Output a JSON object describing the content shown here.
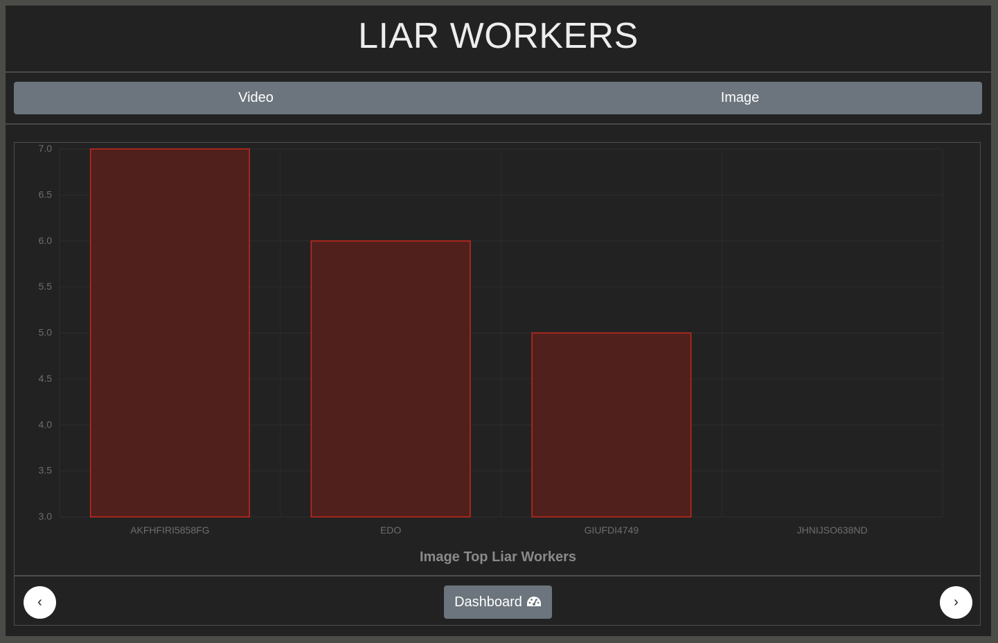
{
  "header": {
    "title": "LIAR WORKERS"
  },
  "tabs": [
    {
      "label": "Video"
    },
    {
      "label": "Image"
    }
  ],
  "chart_data": {
    "type": "bar",
    "title": "Image Top Liar Workers",
    "categories": [
      "AKFHFIRI5858FG",
      "EDO",
      "GIUFDI4749",
      "JHNIJSO638ND"
    ],
    "values": [
      7,
      6,
      5,
      3
    ],
    "ylim": [
      3.0,
      7.0
    ],
    "yticks": [
      "7.0",
      "6.5",
      "6.0",
      "5.5",
      "5.0",
      "4.5",
      "4.0",
      "3.5",
      "3.0"
    ],
    "grid": true,
    "colors": {
      "bar_fill": "#4f201c",
      "bar_stroke": "#c8281e"
    }
  },
  "footer": {
    "prev_label": "‹",
    "next_label": "›",
    "dashboard_label": "Dashboard",
    "dashboard_icon": "tachometer-icon"
  }
}
